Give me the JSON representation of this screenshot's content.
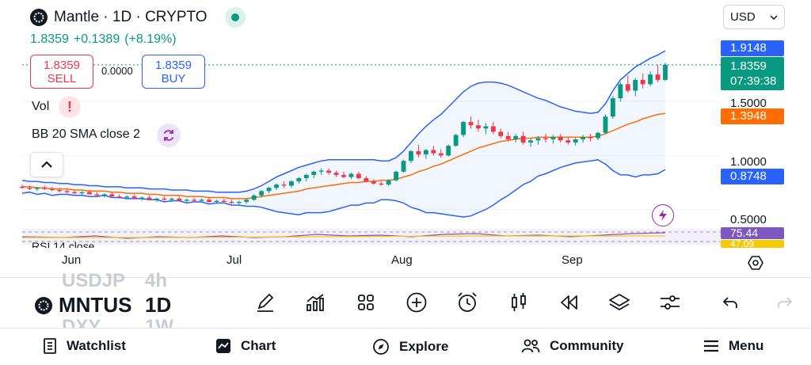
{
  "header": {
    "title": "Mantle · 1D · CRYPTO",
    "last": "1.8359",
    "change": "+0.1389",
    "change_pct": "(+8.19%)",
    "currency": "USD"
  },
  "trade": {
    "sell_price": "1.8359",
    "sell_label": "SELL",
    "spread": "0.0000",
    "buy_price": "1.8359",
    "buy_label": "BUY"
  },
  "indicators": {
    "vol_label": "Vol",
    "vol_warning": "!",
    "bb_label": "BB 20 SMA close 2",
    "rsi_label": "RSI 14 close"
  },
  "price_axis": {
    "ticks": [
      "1.5000",
      "1.0000",
      "0.5000"
    ],
    "bb_upper": "1.9148",
    "price": "1.8359",
    "countdown": "07:39:38",
    "bb_basis": "1.3948",
    "bb_lower": "0.8748",
    "rsi": "75.44",
    "rsi_ma": "47.09"
  },
  "time_axis": [
    "Jun",
    "Jul",
    "Aug",
    "Sep"
  ],
  "toolbar": {
    "ghost_symbols": [
      "USDJP",
      "DXY"
    ],
    "ghost_intervals": [
      "4h",
      "1W"
    ],
    "symbol": "MNTUS",
    "interval": "1D",
    "icons": [
      "pencil-icon",
      "indicators-icon",
      "templates-icon",
      "add-icon",
      "alarm-icon",
      "candles-icon",
      "replay-icon",
      "layers-icon",
      "settings-sliders-icon",
      "undo-icon",
      "redo-icon"
    ]
  },
  "nav": [
    {
      "label": "Watchlist",
      "icon": "watchlist-icon"
    },
    {
      "label": "Chart",
      "icon": "chart-icon"
    },
    {
      "label": "Explore",
      "icon": "compass-icon"
    },
    {
      "label": "Community",
      "icon": "people-icon"
    },
    {
      "label": "Menu",
      "icon": "hamburger-icon"
    }
  ],
  "colors": {
    "up": "#089981",
    "down": "#f23645",
    "bb_band": "#2962ff",
    "bb_basis": "#ff6d00",
    "rsi": "#7e57c2",
    "rsi_ma": "#f7c900"
  },
  "chart_data": {
    "type": "candlestick",
    "symbol": "Mantle",
    "interval": "1D",
    "ylim": [
      0.35,
      2.0
    ],
    "x_labels": [
      "Jun",
      "Jul",
      "Aug",
      "Sep"
    ],
    "candles": [
      [
        0.71,
        0.73,
        0.69,
        0.7
      ],
      [
        0.7,
        0.72,
        0.68,
        0.69
      ],
      [
        0.69,
        0.71,
        0.67,
        0.7
      ],
      [
        0.7,
        0.72,
        0.68,
        0.69
      ],
      [
        0.69,
        0.71,
        0.67,
        0.68
      ],
      [
        0.68,
        0.7,
        0.66,
        0.67
      ],
      [
        0.67,
        0.69,
        0.65,
        0.66
      ],
      [
        0.66,
        0.68,
        0.64,
        0.65
      ],
      [
        0.65,
        0.67,
        0.63,
        0.66
      ],
      [
        0.66,
        0.68,
        0.64,
        0.64
      ],
      [
        0.64,
        0.66,
        0.62,
        0.63
      ],
      [
        0.63,
        0.65,
        0.61,
        0.64
      ],
      [
        0.64,
        0.66,
        0.62,
        0.62
      ],
      [
        0.62,
        0.64,
        0.6,
        0.61
      ],
      [
        0.61,
        0.63,
        0.59,
        0.62
      ],
      [
        0.62,
        0.64,
        0.6,
        0.6
      ],
      [
        0.6,
        0.62,
        0.58,
        0.61
      ],
      [
        0.61,
        0.63,
        0.59,
        0.59
      ],
      [
        0.59,
        0.61,
        0.57,
        0.6
      ],
      [
        0.6,
        0.62,
        0.58,
        0.59
      ],
      [
        0.59,
        0.61,
        0.57,
        0.6
      ],
      [
        0.6,
        0.62,
        0.58,
        0.58
      ],
      [
        0.58,
        0.6,
        0.56,
        0.59
      ],
      [
        0.59,
        0.61,
        0.57,
        0.58
      ],
      [
        0.58,
        0.6,
        0.56,
        0.59
      ],
      [
        0.59,
        0.61,
        0.56,
        0.57
      ],
      [
        0.57,
        0.59,
        0.55,
        0.58
      ],
      [
        0.58,
        0.6,
        0.56,
        0.57
      ],
      [
        0.57,
        0.59,
        0.55,
        0.56
      ],
      [
        0.56,
        0.58,
        0.54,
        0.57
      ],
      [
        0.57,
        0.6,
        0.55,
        0.59
      ],
      [
        0.59,
        0.64,
        0.58,
        0.63
      ],
      [
        0.63,
        0.68,
        0.61,
        0.67
      ],
      [
        0.67,
        0.71,
        0.65,
        0.7
      ],
      [
        0.7,
        0.74,
        0.68,
        0.73
      ],
      [
        0.73,
        0.76,
        0.7,
        0.72
      ],
      [
        0.72,
        0.77,
        0.7,
        0.76
      ],
      [
        0.76,
        0.8,
        0.74,
        0.79
      ],
      [
        0.79,
        0.83,
        0.76,
        0.82
      ],
      [
        0.82,
        0.86,
        0.79,
        0.85
      ],
      [
        0.85,
        0.88,
        0.82,
        0.86
      ],
      [
        0.86,
        0.88,
        0.82,
        0.84
      ],
      [
        0.84,
        0.86,
        0.8,
        0.82
      ],
      [
        0.82,
        0.85,
        0.79,
        0.8
      ],
      [
        0.8,
        0.84,
        0.78,
        0.83
      ],
      [
        0.83,
        0.85,
        0.78,
        0.79
      ],
      [
        0.79,
        0.81,
        0.75,
        0.76
      ],
      [
        0.76,
        0.78,
        0.73,
        0.74
      ],
      [
        0.74,
        0.76,
        0.72,
        0.73
      ],
      [
        0.73,
        0.78,
        0.72,
        0.77
      ],
      [
        0.77,
        0.86,
        0.76,
        0.85
      ],
      [
        0.85,
        0.96,
        0.84,
        0.95
      ],
      [
        0.95,
        1.05,
        0.93,
        1.04
      ],
      [
        1.04,
        1.1,
        0.98,
        1.01
      ],
      [
        1.01,
        1.06,
        0.97,
        1.05
      ],
      [
        1.05,
        1.09,
        1.0,
        1.02
      ],
      [
        1.02,
        1.06,
        0.98,
        1.0
      ],
      [
        1.0,
        1.1,
        0.99,
        1.09
      ],
      [
        1.09,
        1.2,
        1.08,
        1.19
      ],
      [
        1.19,
        1.32,
        1.17,
        1.31
      ],
      [
        1.31,
        1.36,
        1.25,
        1.28
      ],
      [
        1.28,
        1.33,
        1.22,
        1.25
      ],
      [
        1.25,
        1.3,
        1.2,
        1.27
      ],
      [
        1.27,
        1.31,
        1.2,
        1.22
      ],
      [
        1.22,
        1.25,
        1.16,
        1.18
      ],
      [
        1.18,
        1.22,
        1.13,
        1.15
      ],
      [
        1.15,
        1.2,
        1.12,
        1.18
      ],
      [
        1.18,
        1.22,
        1.1,
        1.12
      ],
      [
        1.12,
        1.16,
        1.08,
        1.14
      ],
      [
        1.14,
        1.18,
        1.1,
        1.16
      ],
      [
        1.16,
        1.2,
        1.12,
        1.15
      ],
      [
        1.15,
        1.19,
        1.11,
        1.17
      ],
      [
        1.17,
        1.2,
        1.12,
        1.14
      ],
      [
        1.14,
        1.17,
        1.1,
        1.12
      ],
      [
        1.12,
        1.16,
        1.09,
        1.15
      ],
      [
        1.15,
        1.19,
        1.12,
        1.17
      ],
      [
        1.17,
        1.2,
        1.13,
        1.16
      ],
      [
        1.16,
        1.22,
        1.14,
        1.21
      ],
      [
        1.21,
        1.38,
        1.2,
        1.36
      ],
      [
        1.36,
        1.55,
        1.34,
        1.53
      ],
      [
        1.53,
        1.68,
        1.5,
        1.66
      ],
      [
        1.66,
        1.74,
        1.58,
        1.6
      ],
      [
        1.6,
        1.72,
        1.55,
        1.7
      ],
      [
        1.7,
        1.76,
        1.62,
        1.66
      ],
      [
        1.66,
        1.78,
        1.64,
        1.75
      ],
      [
        1.75,
        1.84,
        1.68,
        1.7
      ],
      [
        1.7,
        1.86,
        1.69,
        1.84
      ]
    ],
    "bb_upper": [
      0.77,
      0.76,
      0.76,
      0.75,
      0.75,
      0.74,
      0.74,
      0.73,
      0.73,
      0.72,
      0.72,
      0.71,
      0.71,
      0.71,
      0.7,
      0.7,
      0.7,
      0.69,
      0.69,
      0.69,
      0.68,
      0.68,
      0.68,
      0.67,
      0.67,
      0.67,
      0.66,
      0.66,
      0.66,
      0.66,
      0.67,
      0.69,
      0.72,
      0.76,
      0.8,
      0.83,
      0.86,
      0.89,
      0.91,
      0.93,
      0.95,
      0.96,
      0.96,
      0.96,
      0.96,
      0.96,
      0.96,
      0.96,
      0.95,
      0.95,
      0.98,
      1.04,
      1.12,
      1.2,
      1.27,
      1.33,
      1.38,
      1.45,
      1.52,
      1.59,
      1.64,
      1.67,
      1.68,
      1.68,
      1.67,
      1.65,
      1.62,
      1.59,
      1.56,
      1.53,
      1.51,
      1.48,
      1.45,
      1.43,
      1.41,
      1.4,
      1.39,
      1.4,
      1.48,
      1.6,
      1.7,
      1.76,
      1.82,
      1.86,
      1.9,
      1.93,
      1.97
    ],
    "bb_basis": [
      0.71,
      0.71,
      0.7,
      0.7,
      0.69,
      0.69,
      0.69,
      0.68,
      0.68,
      0.67,
      0.67,
      0.67,
      0.66,
      0.66,
      0.65,
      0.65,
      0.65,
      0.64,
      0.64,
      0.63,
      0.63,
      0.63,
      0.62,
      0.62,
      0.62,
      0.61,
      0.61,
      0.61,
      0.6,
      0.6,
      0.6,
      0.61,
      0.62,
      0.63,
      0.64,
      0.65,
      0.66,
      0.67,
      0.69,
      0.7,
      0.71,
      0.72,
      0.73,
      0.74,
      0.75,
      0.75,
      0.76,
      0.76,
      0.77,
      0.77,
      0.78,
      0.8,
      0.82,
      0.85,
      0.87,
      0.9,
      0.92,
      0.95,
      0.98,
      1.01,
      1.04,
      1.07,
      1.09,
      1.11,
      1.13,
      1.14,
      1.15,
      1.16,
      1.16,
      1.17,
      1.17,
      1.17,
      1.17,
      1.17,
      1.17,
      1.17,
      1.17,
      1.18,
      1.2,
      1.23,
      1.26,
      1.29,
      1.31,
      1.34,
      1.36,
      1.38,
      1.39
    ],
    "bb_lower": [
      0.65,
      0.66,
      0.64,
      0.65,
      0.63,
      0.64,
      0.64,
      0.63,
      0.63,
      0.62,
      0.62,
      0.63,
      0.61,
      0.61,
      0.6,
      0.6,
      0.6,
      0.59,
      0.59,
      0.57,
      0.58,
      0.58,
      0.56,
      0.57,
      0.57,
      0.55,
      0.56,
      0.56,
      0.54,
      0.54,
      0.53,
      0.53,
      0.52,
      0.5,
      0.48,
      0.47,
      0.46,
      0.45,
      0.47,
      0.47,
      0.47,
      0.48,
      0.5,
      0.52,
      0.54,
      0.54,
      0.56,
      0.56,
      0.59,
      0.59,
      0.58,
      0.56,
      0.52,
      0.5,
      0.47,
      0.47,
      0.46,
      0.45,
      0.44,
      0.43,
      0.44,
      0.47,
      0.5,
      0.54,
      0.59,
      0.63,
      0.68,
      0.73,
      0.76,
      0.81,
      0.83,
      0.86,
      0.89,
      0.91,
      0.93,
      0.94,
      0.95,
      0.96,
      0.92,
      0.86,
      0.82,
      0.82,
      0.8,
      0.82,
      0.82,
      0.83,
      0.87
    ]
  }
}
